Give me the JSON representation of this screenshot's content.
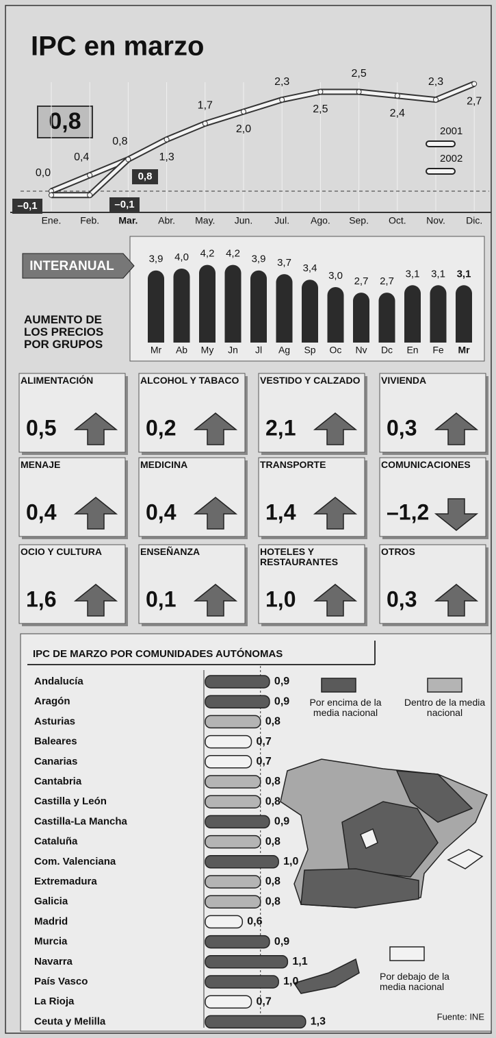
{
  "chart_data": [
    {
      "type": "line",
      "title": "IPC en marzo",
      "highlight": "0,8",
      "categories": [
        "Ene.",
        "Feb.",
        "Mar.",
        "Abr.",
        "May.",
        "Jun.",
        "Jul.",
        "Ago.",
        "Sep.",
        "Oct.",
        "Nov.",
        "Dic."
      ],
      "series": [
        {
          "name": "2001",
          "color": "#f4f4f4",
          "values": [
            0.0,
            0.4,
            0.8,
            1.3,
            1.7,
            2.0,
            2.3,
            2.5,
            2.5,
            2.4,
            2.3,
            2.7
          ],
          "value_labels": [
            "0,0",
            "0,4",
            "0,8",
            "1,3",
            "1,7",
            "2,0",
            "2,3",
            "2,5",
            "2,5",
            "2,4",
            "2,3",
            "2,7"
          ]
        },
        {
          "name": "2002",
          "color": "#f4f4f4",
          "values": [
            -0.1,
            -0.1,
            0.8,
            null,
            null,
            null,
            null,
            null,
            null,
            null,
            null,
            null
          ],
          "value_labels": [
            "–0,1",
            "–0,1",
            "0,8",
            null,
            null,
            null,
            null,
            null,
            null,
            null,
            null,
            null
          ]
        }
      ],
      "ylim": [
        -0.5,
        3.0
      ]
    },
    {
      "type": "bar",
      "label": "INTERANUAL",
      "color": "#2b2b2b",
      "categories": [
        "Mr",
        "Ab",
        "My",
        "Jn",
        "Jl",
        "Ag",
        "Sp",
        "Oc",
        "Nv",
        "Dc",
        "En",
        "Fe",
        "Mr"
      ],
      "values": [
        3.9,
        4.0,
        4.2,
        4.2,
        3.9,
        3.7,
        3.4,
        3.0,
        2.7,
        2.7,
        3.1,
        3.1,
        3.1
      ],
      "value_labels": [
        "3,9",
        "4,0",
        "4,2",
        "4,2",
        "3,9",
        "3,7",
        "3,4",
        "3,0",
        "2,7",
        "2,7",
        "3,1",
        "3,1",
        "3,1"
      ],
      "ylim": [
        0,
        4.5
      ]
    },
    {
      "type": "tiles",
      "title": "AUMENTO DE LOS PRECIOS POR GRUPOS",
      "categories": [
        "ALIMENTACIÓN",
        "ALCOHOL Y TABACO",
        "VESTIDO Y CALZADO",
        "VIVIENDA",
        "MENAJE",
        "MEDICINA",
        "TRANSPORTE",
        "COMUNICACIONES",
        "OCIO Y CULTURA",
        "ENSEÑANZA",
        "HOTELES Y RESTAURANTES",
        "OTROS"
      ],
      "values": [
        0.5,
        0.2,
        2.1,
        0.3,
        0.4,
        0.4,
        1.4,
        -1.2,
        1.6,
        0.1,
        1.0,
        0.3
      ],
      "value_labels": [
        "0,5",
        "0,2",
        "2,1",
        "0,3",
        "0,4",
        "0,4",
        "1,4",
        "–1,2",
        "1,6",
        "0,1",
        "1,0",
        "0,3"
      ]
    },
    {
      "type": "hbar",
      "title": "IPC DE MARZO POR COMUNIDADES AUTÓNOMAS",
      "source": "Fuente: INE",
      "categories": [
        "Andalucía",
        "Aragón",
        "Asturias",
        "Baleares",
        "Canarias",
        "Cantabria",
        "Castilla y León",
        "Castilla-La Mancha",
        "Cataluña",
        "Com. Valenciana",
        "Extremadura",
        "Galicia",
        "Madrid",
        "Murcia",
        "Navarra",
        "País Vasco",
        "La Rioja",
        "Ceuta y Melilla"
      ],
      "value_labels": [
        "0,9",
        "0,9",
        "0,8",
        "0,7",
        "0,7",
        "0,8",
        "0,8",
        "0,9",
        "0,8",
        "1,0",
        "0,8",
        "0,8",
        "0,6",
        "0,9",
        "1,1",
        "1,0",
        "0,7",
        "1,3"
      ],
      "series": [
        {
          "name": "Por encima de la media nacional",
          "color": "#5a5a5a",
          "values": [
            0.9,
            0.9,
            null,
            null,
            null,
            null,
            null,
            0.9,
            null,
            1.0,
            null,
            null,
            null,
            0.9,
            1.1,
            1.0,
            null,
            1.3
          ]
        },
        {
          "name": "Dentro de la media nacional",
          "color": "#b4b4b4",
          "values": [
            null,
            null,
            0.8,
            null,
            null,
            0.8,
            0.8,
            null,
            0.8,
            null,
            0.8,
            0.8,
            null,
            null,
            null,
            null,
            null,
            null
          ]
        },
        {
          "name": "Por debajo de la media nacional",
          "color": "#f2f2f2",
          "values": [
            null,
            null,
            null,
            0.7,
            0.7,
            null,
            null,
            null,
            null,
            null,
            null,
            null,
            0.6,
            null,
            null,
            null,
            0.7,
            null
          ]
        }
      ],
      "xlim": [
        0,
        1.4
      ]
    }
  ]
}
